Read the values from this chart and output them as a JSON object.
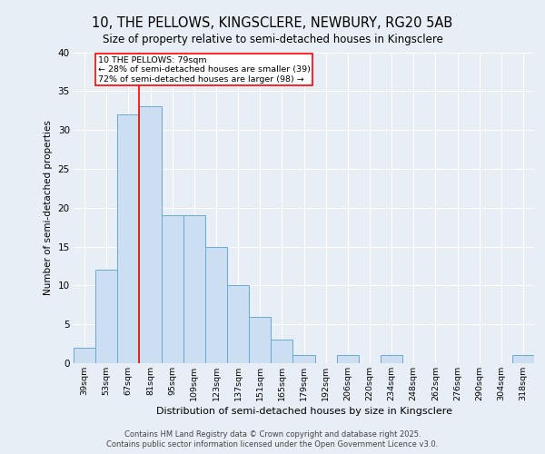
{
  "title1": "10, THE PELLOWS, KINGSCLERE, NEWBURY, RG20 5AB",
  "title2": "Size of property relative to semi-detached houses in Kingsclere",
  "xlabel": "Distribution of semi-detached houses by size in Kingsclere",
  "ylabel": "Number of semi-detached properties",
  "categories": [
    "39sqm",
    "53sqm",
    "67sqm",
    "81sqm",
    "95sqm",
    "109sqm",
    "123sqm",
    "137sqm",
    "151sqm",
    "165sqm",
    "179sqm",
    "192sqm",
    "206sqm",
    "220sqm",
    "234sqm",
    "248sqm",
    "262sqm",
    "276sqm",
    "290sqm",
    "304sqm",
    "318sqm"
  ],
  "values": [
    2,
    12,
    32,
    33,
    19,
    19,
    15,
    10,
    6,
    3,
    1,
    0,
    1,
    0,
    1,
    0,
    0,
    0,
    0,
    0,
    1
  ],
  "bar_color": "#ccdff2",
  "bar_edge_color": "#6aaad4",
  "annotation_text": "10 THE PELLOWS: 79sqm\n← 28% of semi-detached houses are smaller (39)\n72% of semi-detached houses are larger (98) →",
  "red_line_x": 2.5,
  "footer": "Contains HM Land Registry data © Crown copyright and database right 2025.\nContains public sector information licensed under the Open Government Licence v3.0.",
  "ylim": [
    0,
    40
  ],
  "yticks": [
    0,
    5,
    10,
    15,
    20,
    25,
    30,
    35,
    40
  ],
  "fig_bg_color": "#e8eef5",
  "plot_bg_color": "#e8eef5"
}
